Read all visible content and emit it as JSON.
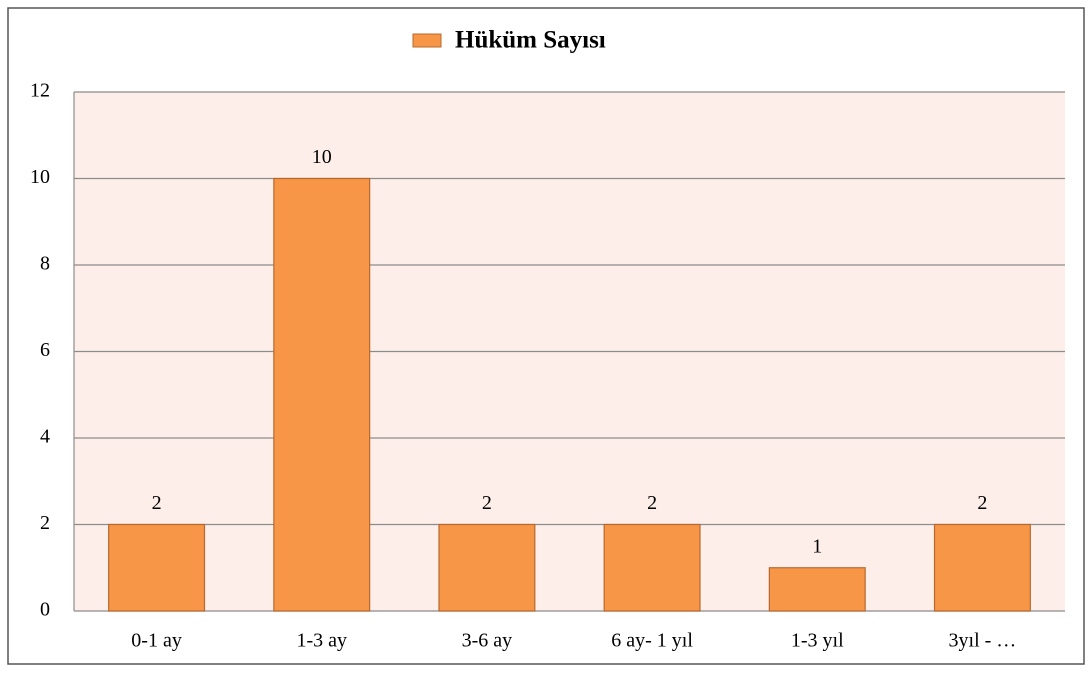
{
  "chart_data": {
    "type": "bar",
    "categories": [
      "0-1 ay",
      "1-3 ay",
      "3-6 ay",
      "6 ay- 1 yıl",
      "1-3 yıl",
      "3yıl - …"
    ],
    "series": [
      {
        "name": "Hüküm Sayısı",
        "color": "#f79646",
        "values": [
          2,
          10,
          2,
          2,
          1,
          2
        ]
      }
    ],
    "ylim": [
      0,
      12
    ],
    "yticks": [
      0,
      2,
      4,
      6,
      8,
      10,
      12
    ],
    "grid": true,
    "legend": "top",
    "data_labels": true
  }
}
